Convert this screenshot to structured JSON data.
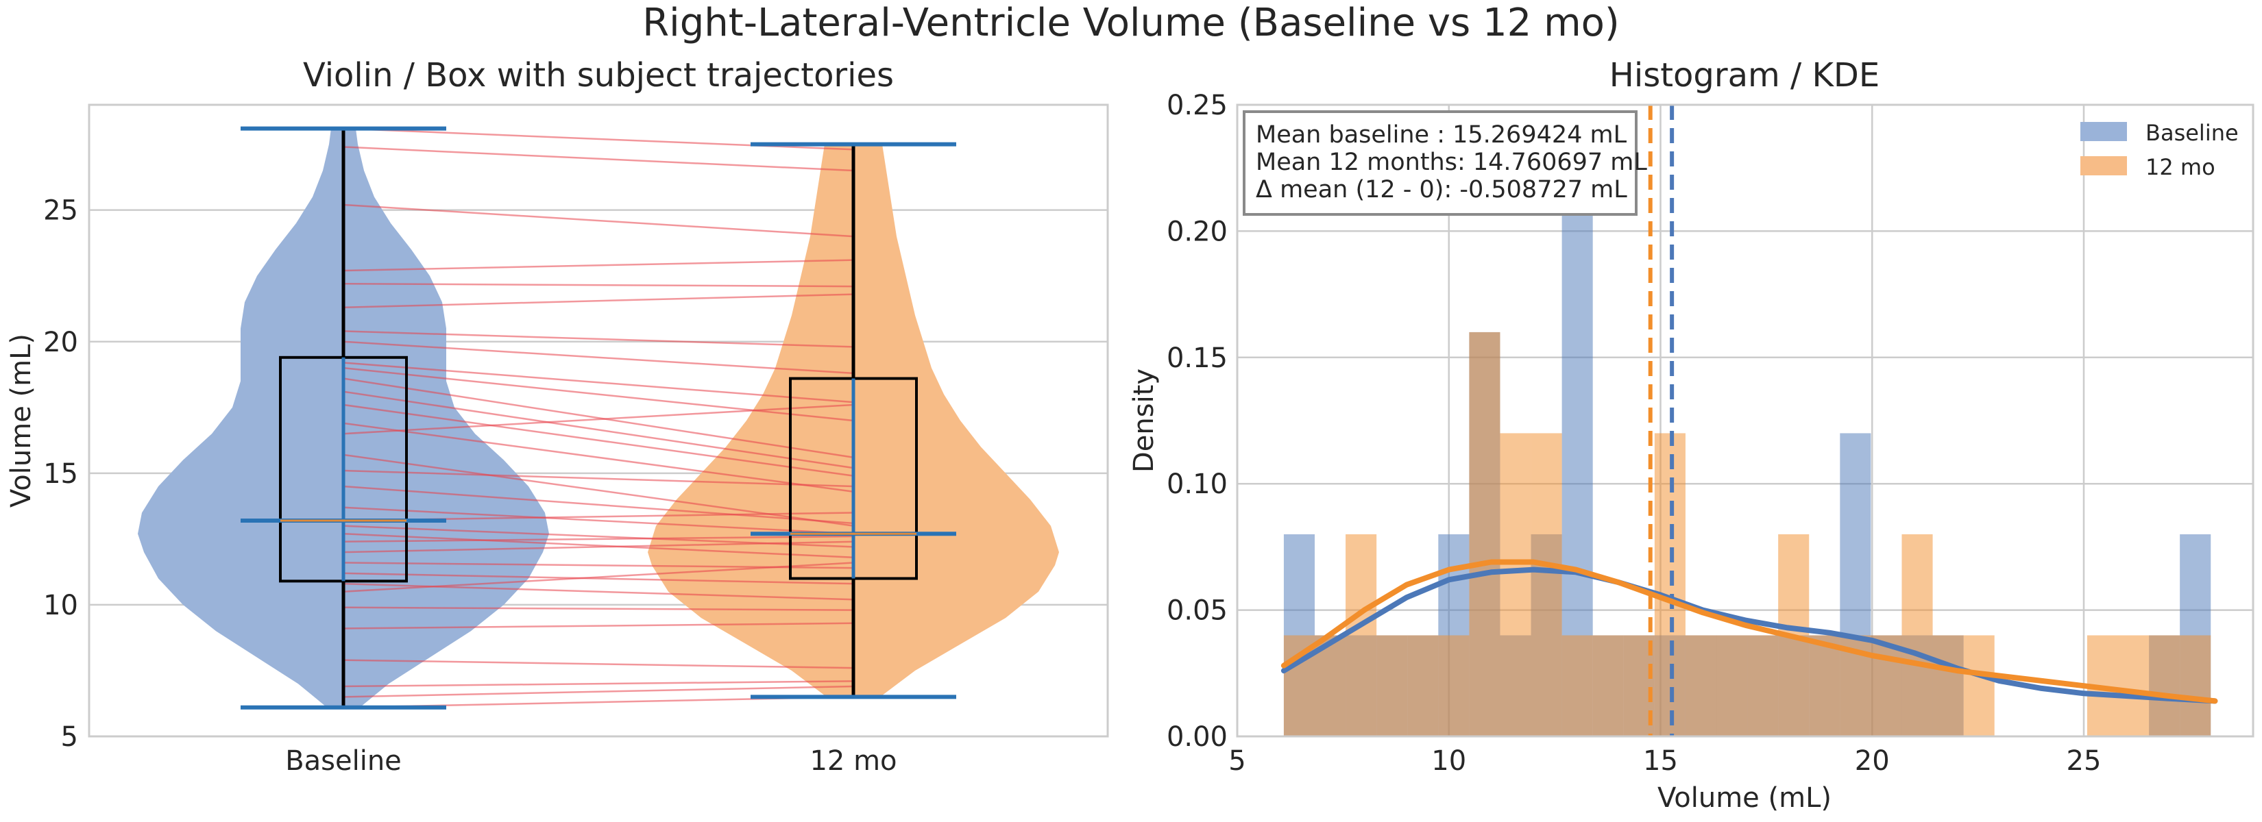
{
  "suptitle": "Right-Lateral-Ventricle Volume (Baseline vs 12 mo)",
  "colors": {
    "baseline": "#4c78b8",
    "twelve": "#f28e2b",
    "baseline_fill": "#9ab3d9",
    "twelve_fill": "#f7bc87",
    "overlap": "#c29b78",
    "trajectory": "#e8414b",
    "box_line": "#000000",
    "whisker_cap": "#2a73b5",
    "median": "#e08a3a",
    "grid": "#cccccc"
  },
  "chart_data": [
    {
      "type": "violin",
      "title": "Violin / Box with subject trajectories",
      "xlabel": "",
      "ylabel": "Volume (mL)",
      "categories": [
        "Baseline",
        "12 mo"
      ],
      "ylim": [
        5,
        29
      ],
      "yticks": [
        5,
        10,
        15,
        20,
        25
      ],
      "grid": true,
      "series": [
        {
          "name": "Baseline",
          "stats": {
            "min": 6.1,
            "q1": 10.9,
            "median": 13.2,
            "q3": 19.4,
            "max": 28.1
          },
          "profile": [
            [
              6.1,
              0.08
            ],
            [
              7,
              0.22
            ],
            [
              8,
              0.42
            ],
            [
              9,
              0.62
            ],
            [
              10,
              0.78
            ],
            [
              11,
              0.9
            ],
            [
              12,
              0.97
            ],
            [
              12.7,
              1.0
            ],
            [
              13.5,
              0.98
            ],
            [
              14.5,
              0.9
            ],
            [
              15.5,
              0.78
            ],
            [
              16.5,
              0.64
            ],
            [
              17.5,
              0.54
            ],
            [
              18.5,
              0.5
            ],
            [
              19.5,
              0.5
            ],
            [
              20.5,
              0.5
            ],
            [
              21.5,
              0.48
            ],
            [
              22.5,
              0.42
            ],
            [
              23.5,
              0.33
            ],
            [
              24.5,
              0.23
            ],
            [
              25.5,
              0.15
            ],
            [
              26.5,
              0.1
            ],
            [
              27.5,
              0.07
            ],
            [
              28.1,
              0.06
            ]
          ]
        },
        {
          "name": "12 mo",
          "stats": {
            "min": 6.5,
            "q1": 11.0,
            "median": 12.7,
            "q3": 18.6,
            "max": 27.5
          },
          "profile": [
            [
              6.5,
              0.13
            ],
            [
              7.5,
              0.3
            ],
            [
              8.5,
              0.52
            ],
            [
              9.5,
              0.74
            ],
            [
              10.5,
              0.9
            ],
            [
              11.5,
              0.98
            ],
            [
              12,
              1.0
            ],
            [
              13,
              0.96
            ],
            [
              14,
              0.86
            ],
            [
              15,
              0.74
            ],
            [
              16,
              0.62
            ],
            [
              17,
              0.52
            ],
            [
              18,
              0.44
            ],
            [
              19,
              0.38
            ],
            [
              20,
              0.34
            ],
            [
              21,
              0.3
            ],
            [
              22,
              0.27
            ],
            [
              23,
              0.24
            ],
            [
              24,
              0.21
            ],
            [
              25,
              0.19
            ],
            [
              26,
              0.17
            ],
            [
              27,
              0.15
            ],
            [
              27.5,
              0.14
            ]
          ]
        }
      ],
      "trajectories": [
        [
          28.1,
          27.3
        ],
        [
          27.4,
          26.5
        ],
        [
          25.2,
          24.0
        ],
        [
          22.7,
          23.1
        ],
        [
          22.2,
          22.1
        ],
        [
          21.3,
          21.8
        ],
        [
          20.4,
          19.8
        ],
        [
          20.0,
          18.8
        ],
        [
          19.2,
          17.7
        ],
        [
          19.0,
          17.0
        ],
        [
          18.6,
          15.6
        ],
        [
          18.1,
          15.2
        ],
        [
          17.6,
          14.9
        ],
        [
          16.9,
          14.3
        ],
        [
          16.5,
          17.6
        ],
        [
          15.7,
          13.0
        ],
        [
          15.1,
          14.5
        ],
        [
          14.5,
          13.1
        ],
        [
          13.7,
          12.7
        ],
        [
          13.2,
          13.5
        ],
        [
          13.0,
          12.2
        ],
        [
          12.7,
          11.8
        ],
        [
          12.4,
          12.6
        ],
        [
          12.0,
          12.4
        ],
        [
          11.6,
          11.4
        ],
        [
          11.2,
          10.8
        ],
        [
          10.8,
          10.2
        ],
        [
          10.5,
          11.6
        ],
        [
          9.9,
          9.8
        ],
        [
          9.1,
          9.3
        ],
        [
          7.9,
          7.6
        ],
        [
          6.9,
          7.1
        ],
        [
          6.5,
          6.9
        ],
        [
          6.1,
          6.5
        ]
      ]
    },
    {
      "type": "histogram",
      "title": "Histogram / KDE",
      "xlabel": "Volume (mL)",
      "ylabel": "Density",
      "xlim": [
        5,
        29
      ],
      "ylim": [
        0,
        0.25
      ],
      "xticks": [
        5,
        10,
        15,
        20,
        25
      ],
      "yticks": [
        "0.00",
        "0.05",
        "0.10",
        "0.15",
        "0.20",
        "0.25"
      ],
      "grid": true,
      "legend_position": "top-right",
      "series": [
        {
          "name": "Baseline",
          "bin_start": 6.1,
          "bin_width": 0.73,
          "densities": [
            0.08,
            0.04,
            0.04,
            0.04,
            0.04,
            0.08,
            0.16,
            0.04,
            0.08,
            0.24,
            0.04,
            0.04,
            0.04,
            0.04,
            0.04,
            0.04,
            0.04,
            0.04,
            0.12,
            0.04,
            0.04,
            0.04,
            0.0,
            0.0,
            0.0,
            0.0,
            0.0,
            0.0,
            0.04,
            0.08
          ],
          "mean": 15.269424,
          "kde": [
            [
              6.1,
              0.026
            ],
            [
              7,
              0.035
            ],
            [
              8,
              0.045
            ],
            [
              9,
              0.055
            ],
            [
              10,
              0.062
            ],
            [
              11,
              0.065
            ],
            [
              12,
              0.066
            ],
            [
              13,
              0.065
            ],
            [
              14,
              0.061
            ],
            [
              15,
              0.056
            ],
            [
              16,
              0.05
            ],
            [
              17,
              0.046
            ],
            [
              18,
              0.043
            ],
            [
              19,
              0.041
            ],
            [
              20,
              0.038
            ],
            [
              21,
              0.033
            ],
            [
              22,
              0.027
            ],
            [
              23,
              0.022
            ],
            [
              24,
              0.019
            ],
            [
              25,
              0.017
            ],
            [
              26,
              0.016
            ],
            [
              27,
              0.015
            ],
            [
              28.1,
              0.014
            ]
          ]
        },
        {
          "name": "12 mo",
          "bin_start": 6.1,
          "bin_width": 0.73,
          "densities": [
            0.04,
            0.04,
            0.08,
            0.04,
            0.04,
            0.04,
            0.16,
            0.12,
            0.12,
            0.04,
            0.04,
            0.04,
            0.12,
            0.04,
            0.04,
            0.04,
            0.08,
            0.04,
            0.04,
            0.04,
            0.08,
            0.04,
            0.04,
            0.0,
            0.0,
            0.0,
            0.04,
            0.04,
            0.04,
            0.04
          ],
          "mean": 14.760697,
          "kde": [
            [
              6.1,
              0.028
            ],
            [
              7,
              0.038
            ],
            [
              8,
              0.05
            ],
            [
              9,
              0.06
            ],
            [
              10,
              0.066
            ],
            [
              11,
              0.069
            ],
            [
              12,
              0.069
            ],
            [
              13,
              0.066
            ],
            [
              14,
              0.061
            ],
            [
              15,
              0.055
            ],
            [
              16,
              0.049
            ],
            [
              17,
              0.044
            ],
            [
              18,
              0.04
            ],
            [
              19,
              0.036
            ],
            [
              20,
              0.032
            ],
            [
              21,
              0.029
            ],
            [
              22,
              0.026
            ],
            [
              23,
              0.024
            ],
            [
              24,
              0.022
            ],
            [
              25,
              0.02
            ],
            [
              26,
              0.018
            ],
            [
              27,
              0.016
            ],
            [
              28.1,
              0.014
            ]
          ]
        }
      ],
      "info_box": {
        "line1": "Mean baseline : 15.269424 mL",
        "line2": "Mean 12 months: 14.760697 mL",
        "line3": "Δ mean (12 - 0): -0.508727 mL"
      }
    }
  ]
}
